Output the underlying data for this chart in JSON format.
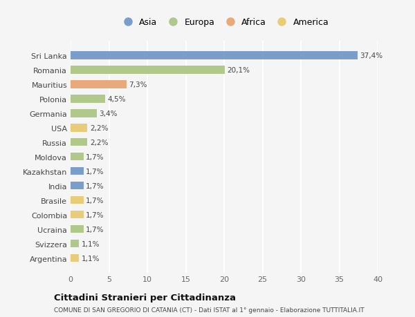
{
  "countries": [
    "Sri Lanka",
    "Romania",
    "Mauritius",
    "Polonia",
    "Germania",
    "USA",
    "Russia",
    "Moldova",
    "Kazakhstan",
    "India",
    "Brasile",
    "Colombia",
    "Ucraina",
    "Svizzera",
    "Argentina"
  ],
  "values": [
    37.4,
    20.1,
    7.3,
    4.5,
    3.4,
    2.2,
    2.2,
    1.7,
    1.7,
    1.7,
    1.7,
    1.7,
    1.7,
    1.1,
    1.1
  ],
  "labels": [
    "37,4%",
    "20,1%",
    "7,3%",
    "4,5%",
    "3,4%",
    "2,2%",
    "2,2%",
    "1,7%",
    "1,7%",
    "1,7%",
    "1,7%",
    "1,7%",
    "1,7%",
    "1,1%",
    "1,1%"
  ],
  "continents": [
    "Asia",
    "Europa",
    "Africa",
    "Europa",
    "Europa",
    "America",
    "Europa",
    "Europa",
    "Asia",
    "Asia",
    "America",
    "America",
    "Europa",
    "Europa",
    "America"
  ],
  "colors": {
    "Asia": "#7b9dc9",
    "Europa": "#b0c88a",
    "Africa": "#e8aa7a",
    "America": "#e8cc7a"
  },
  "xlim": [
    0,
    40
  ],
  "xticks": [
    0,
    5,
    10,
    15,
    20,
    25,
    30,
    35,
    40
  ],
  "background_color": "#f5f5f5",
  "grid_color": "#ffffff",
  "title": "Cittadini Stranieri per Cittadinanza",
  "subtitle": "COMUNE DI SAN GREGORIO DI CATANIA (CT) - Dati ISTAT al 1° gennaio - Elaborazione TUTTITALIA.IT",
  "bar_height": 0.55,
  "figsize": [
    6.0,
    4.6
  ],
  "dpi": 100,
  "legend_order": [
    "Asia",
    "Europa",
    "Africa",
    "America"
  ]
}
